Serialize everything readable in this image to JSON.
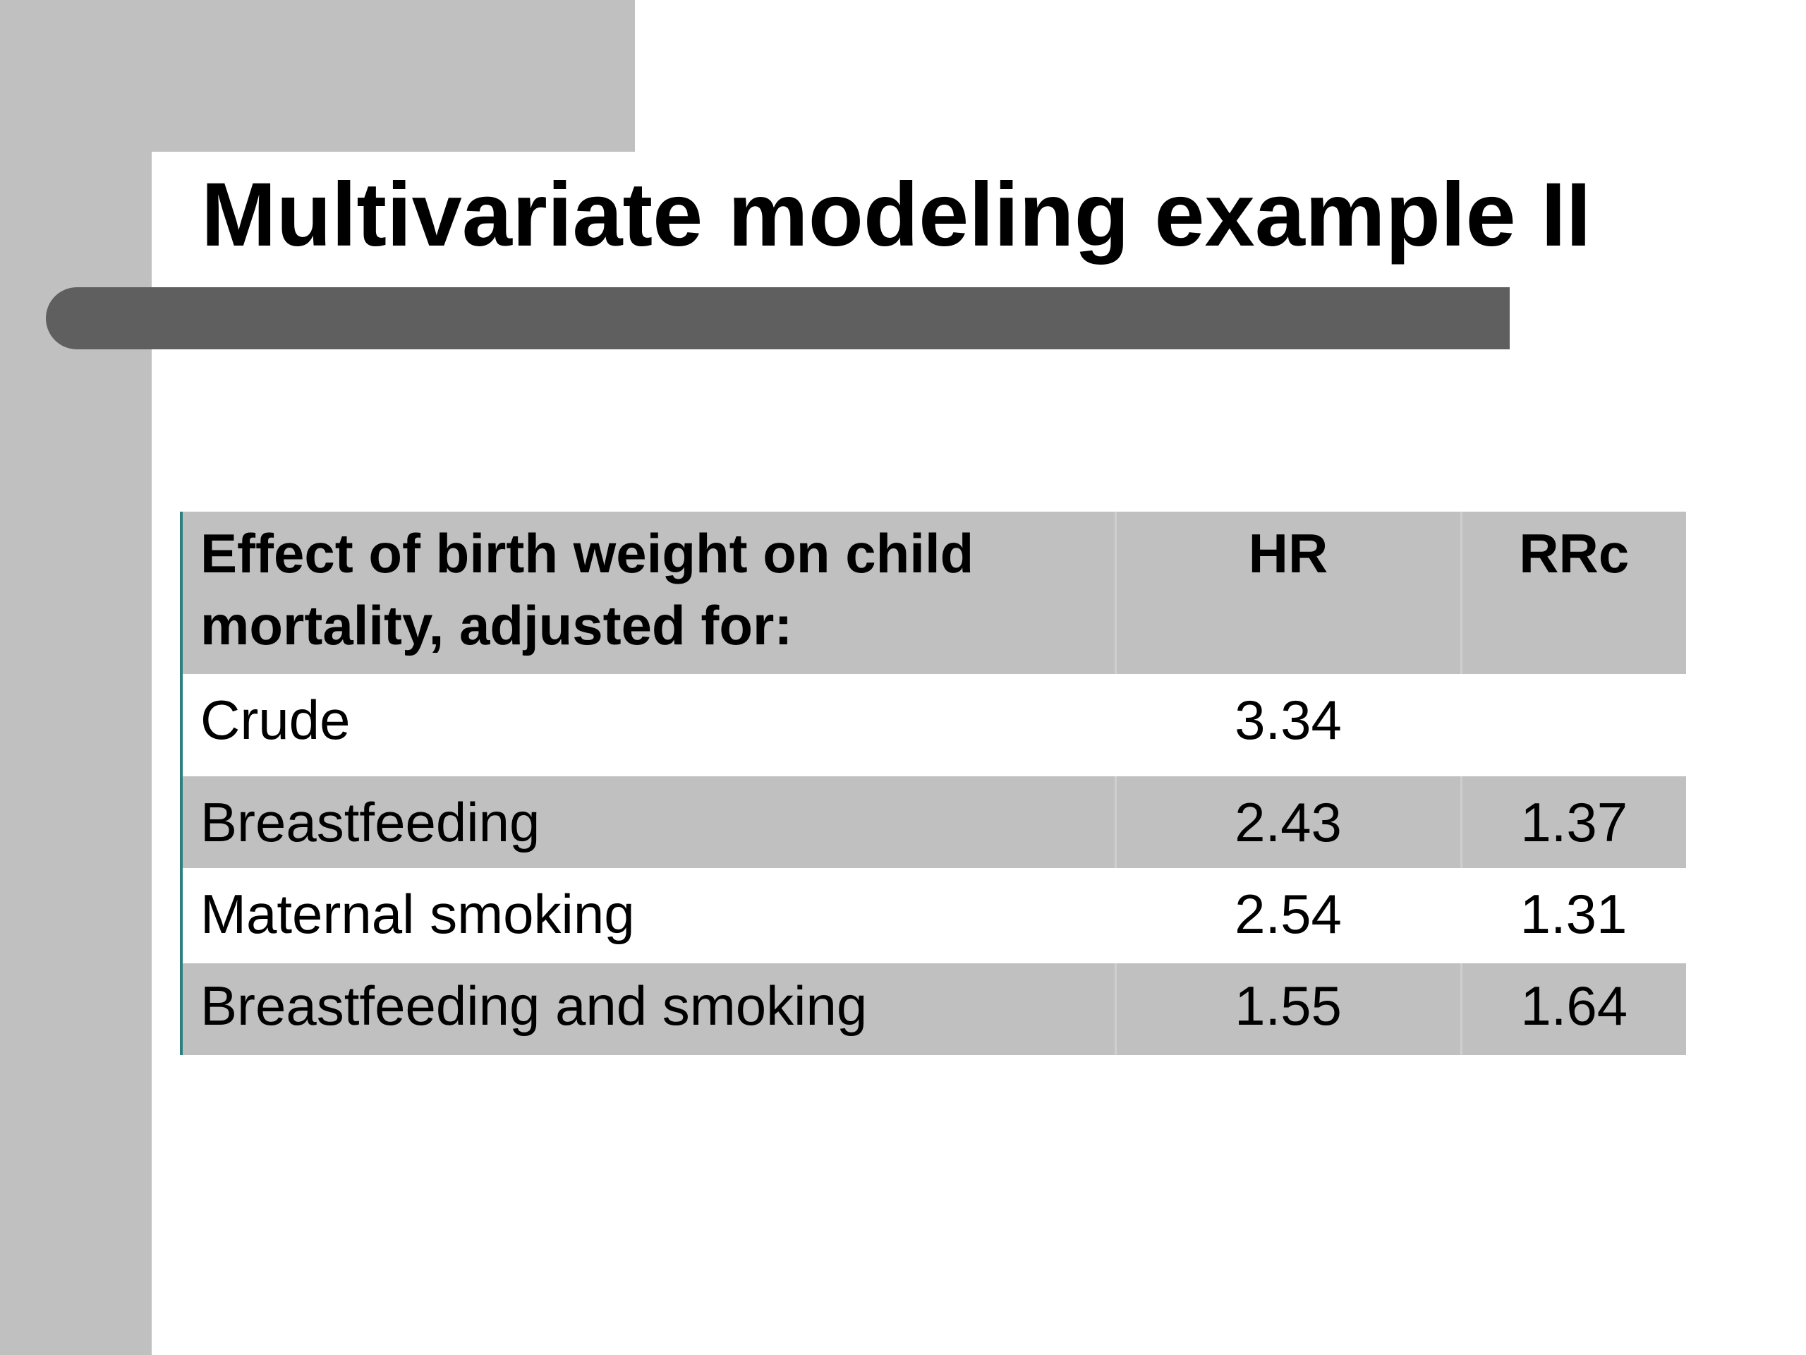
{
  "slide": {
    "title": "Multivariate modeling example II"
  },
  "table": {
    "header": {
      "label": "Effect of birth weight on child mortality, adjusted for:",
      "col_hr": "HR",
      "col_rrc": "RRc"
    },
    "rows": [
      {
        "label": "Crude",
        "hr": "3.34",
        "rrc": ""
      },
      {
        "label": "Breastfeeding",
        "hr": "2.43",
        "rrc": "1.37"
      },
      {
        "label": "Maternal smoking",
        "hr": "2.54",
        "rrc": "1.31"
      },
      {
        "label": "Breastfeeding and smoking",
        "hr": "1.55",
        "rrc": "1.64"
      }
    ]
  },
  "colors": {
    "background": "#ffffff",
    "decoration_gray": "#c0c0c0",
    "bar_dark_gray": "#5f5f5f",
    "table_shade": "#c0c0c0",
    "table_left_rule": "#2e7e7e"
  }
}
